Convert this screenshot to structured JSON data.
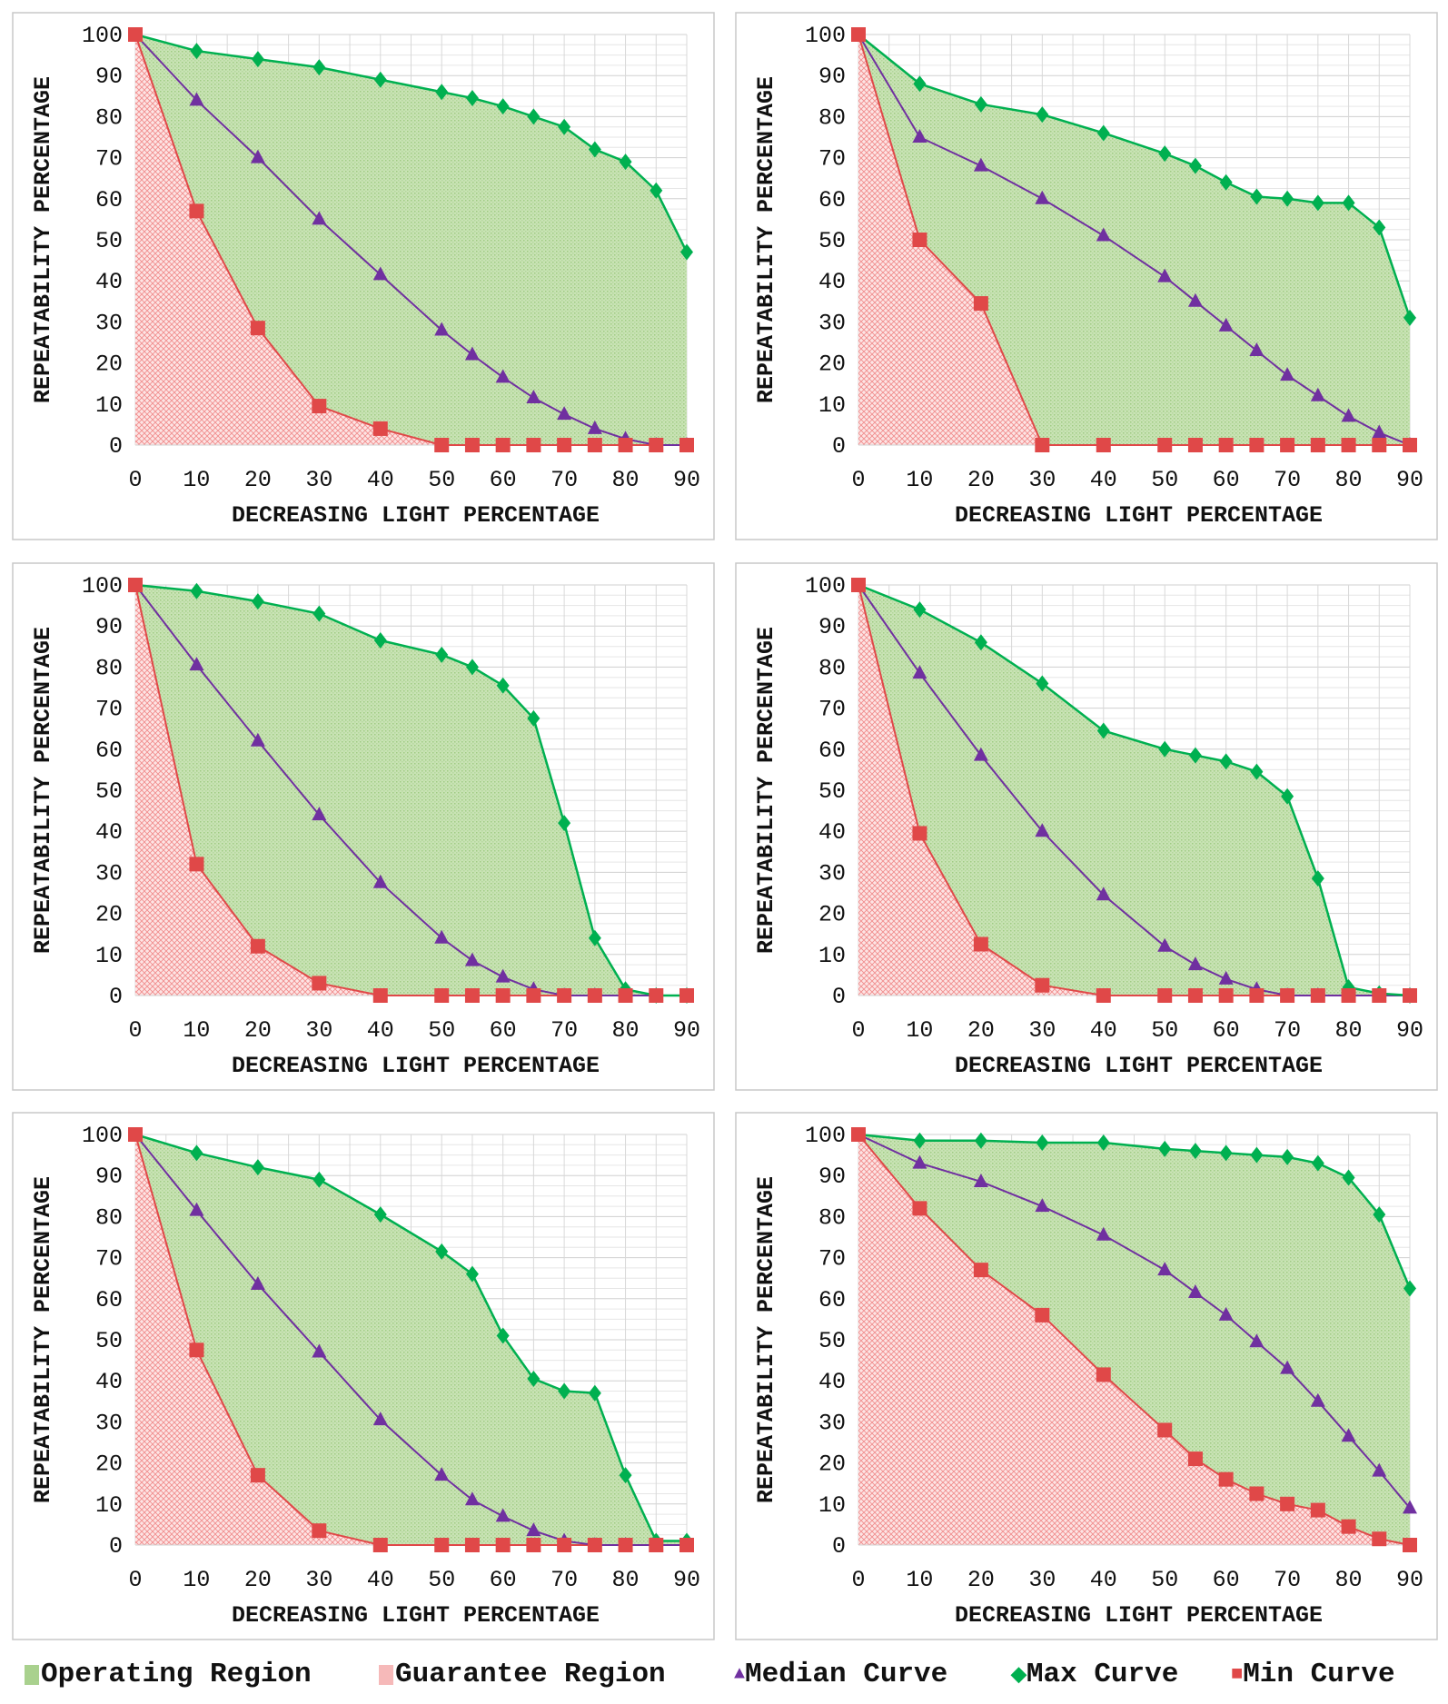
{
  "chart_data": [
    {
      "type": "line",
      "xlabel": "DECREASING LIGHT PERCENTAGE",
      "ylabel": "REPEATABILITY PERCENTAGE",
      "xlim": [
        0,
        90
      ],
      "ylim": [
        0,
        100
      ],
      "x": [
        0,
        10,
        20,
        30,
        40,
        50,
        55,
        60,
        65,
        70,
        75,
        80,
        85,
        90
      ],
      "series": [
        {
          "name": "Max Curve",
          "values": [
            100,
            96,
            94,
            92,
            89,
            86,
            84.5,
            82.5,
            80,
            77.5,
            72,
            69,
            62,
            47
          ]
        },
        {
          "name": "Median Curve",
          "values": [
            100,
            84,
            70,
            55,
            41.5,
            28,
            22,
            16.5,
            11.5,
            7.5,
            4,
            1.5,
            0,
            0
          ]
        },
        {
          "name": "Min Curve",
          "values": [
            100,
            57,
            28.5,
            9.5,
            4,
            0,
            0,
            0,
            0,
            0,
            0,
            0,
            0,
            0
          ]
        }
      ]
    },
    {
      "type": "line",
      "xlabel": "DECREASING LIGHT PERCENTAGE",
      "ylabel": "REPEATABILITY PERCENTAGE",
      "xlim": [
        0,
        90
      ],
      "ylim": [
        0,
        100
      ],
      "x": [
        0,
        10,
        20,
        30,
        40,
        50,
        55,
        60,
        65,
        70,
        75,
        80,
        85,
        90
      ],
      "series": [
        {
          "name": "Max Curve",
          "values": [
            100,
            88,
            83,
            80.5,
            76,
            71,
            68,
            64,
            60.5,
            60,
            59,
            59,
            53,
            31
          ]
        },
        {
          "name": "Median Curve",
          "values": [
            100,
            75,
            68,
            60,
            51,
            41,
            35,
            29,
            23,
            17,
            12,
            7,
            3,
            0
          ]
        },
        {
          "name": "Min Curve",
          "values": [
            100,
            50,
            34.5,
            0,
            0,
            0,
            0,
            0,
            0,
            0,
            0,
            0,
            0,
            0
          ]
        }
      ]
    },
    {
      "type": "line",
      "xlabel": "DECREASING LIGHT PERCENTAGE",
      "ylabel": "REPEATABILITY PERCENTAGE",
      "xlim": [
        0,
        90
      ],
      "ylim": [
        0,
        100
      ],
      "x": [
        0,
        10,
        20,
        30,
        40,
        50,
        55,
        60,
        65,
        70,
        75,
        80,
        85,
        90
      ],
      "series": [
        {
          "name": "Max Curve",
          "values": [
            100,
            98.5,
            96,
            93,
            86.5,
            83,
            80,
            75.5,
            67.5,
            42,
            14,
            1.5,
            0,
            0
          ]
        },
        {
          "name": "Median Curve",
          "values": [
            100,
            80.5,
            62,
            44,
            27.5,
            14,
            8.5,
            4.5,
            1.5,
            0,
            0,
            0,
            0,
            0
          ]
        },
        {
          "name": "Min Curve",
          "values": [
            100,
            32,
            12,
            3,
            0,
            0,
            0,
            0,
            0,
            0,
            0,
            0,
            0,
            0
          ]
        }
      ]
    },
    {
      "type": "line",
      "xlabel": "DECREASING LIGHT PERCENTAGE",
      "ylabel": "REPEATABILITY PERCENTAGE",
      "xlim": [
        0,
        90
      ],
      "ylim": [
        0,
        100
      ],
      "x": [
        0,
        10,
        20,
        30,
        40,
        50,
        55,
        60,
        65,
        70,
        75,
        80,
        85,
        90
      ],
      "series": [
        {
          "name": "Max Curve",
          "values": [
            100,
            94,
            86,
            76,
            64.5,
            60,
            58.5,
            57,
            54.5,
            48.5,
            28.5,
            2,
            0.5,
            0
          ]
        },
        {
          "name": "Median Curve",
          "values": [
            100,
            78.5,
            58.5,
            40,
            24.5,
            12,
            7.5,
            4,
            1.5,
            0,
            0,
            0,
            0,
            0
          ]
        },
        {
          "name": "Min Curve",
          "values": [
            100,
            39.5,
            12.5,
            2.5,
            0,
            0,
            0,
            0,
            0,
            0,
            0,
            0,
            0,
            0
          ]
        }
      ]
    },
    {
      "type": "line",
      "xlabel": "DECREASING LIGHT PERCENTAGE",
      "ylabel": "REPEATABILITY PERCENTAGE",
      "xlim": [
        0,
        90
      ],
      "ylim": [
        0,
        100
      ],
      "x": [
        0,
        10,
        20,
        30,
        40,
        50,
        55,
        60,
        65,
        70,
        75,
        80,
        85,
        90
      ],
      "series": [
        {
          "name": "Max Curve",
          "values": [
            100,
            95.5,
            92,
            89,
            80.5,
            71.5,
            66,
            51,
            40.5,
            37.5,
            37,
            17,
            1,
            1
          ]
        },
        {
          "name": "Median Curve",
          "values": [
            100,
            81.5,
            63.5,
            47,
            30.5,
            17,
            11,
            7,
            3.5,
            1,
            0,
            0,
            0,
            0
          ]
        },
        {
          "name": "Min Curve",
          "values": [
            100,
            47.5,
            17,
            3.5,
            0,
            0,
            0,
            0,
            0,
            0,
            0,
            0,
            0,
            0
          ]
        }
      ]
    },
    {
      "type": "line",
      "xlabel": "DECREASING LIGHT PERCENTAGE",
      "ylabel": "REPEATABILITY PERCENTAGE",
      "xlim": [
        0,
        90
      ],
      "ylim": [
        0,
        100
      ],
      "x": [
        0,
        10,
        20,
        30,
        40,
        50,
        55,
        60,
        65,
        70,
        75,
        80,
        85,
        90
      ],
      "series": [
        {
          "name": "Max Curve",
          "values": [
            100,
            98.5,
            98.5,
            98,
            98,
            96.5,
            96,
            95.5,
            95,
            94.5,
            93,
            89.5,
            80.5,
            62.5
          ]
        },
        {
          "name": "Median Curve",
          "values": [
            100,
            93,
            88.5,
            82.5,
            75.5,
            67,
            61.5,
            56,
            49.5,
            43,
            35,
            26.5,
            18,
            9
          ]
        },
        {
          "name": "Min Curve",
          "values": [
            100,
            82,
            67,
            56,
            41.5,
            28,
            21,
            16,
            12.5,
            10,
            8.5,
            4.5,
            1.5,
            0
          ]
        }
      ]
    }
  ],
  "axes": {
    "xticks": [
      "0",
      "10",
      "20",
      "30",
      "40",
      "50",
      "60",
      "70",
      "80",
      "90"
    ],
    "yticks": [
      "0",
      "10",
      "20",
      "30",
      "40",
      "50",
      "60",
      "70",
      "80",
      "90",
      "100"
    ]
  },
  "legend": {
    "placement": "bottom",
    "items": [
      {
        "label": "Operating Region",
        "color": "#a9d18e"
      },
      {
        "label": "Guarantee Region",
        "color": "#f4a6a6"
      },
      {
        "label": "Median Curve",
        "color": "#7030a0"
      },
      {
        "label": "Max Curve",
        "color": "#00b050"
      },
      {
        "label": "Min Curve",
        "color": "#e04848"
      }
    ]
  },
  "colors": {
    "max": "#00b050",
    "median": "#7030a0",
    "min": "#e04848",
    "operating": "#c5e0b0",
    "guarantee": "#f8c8c8"
  }
}
